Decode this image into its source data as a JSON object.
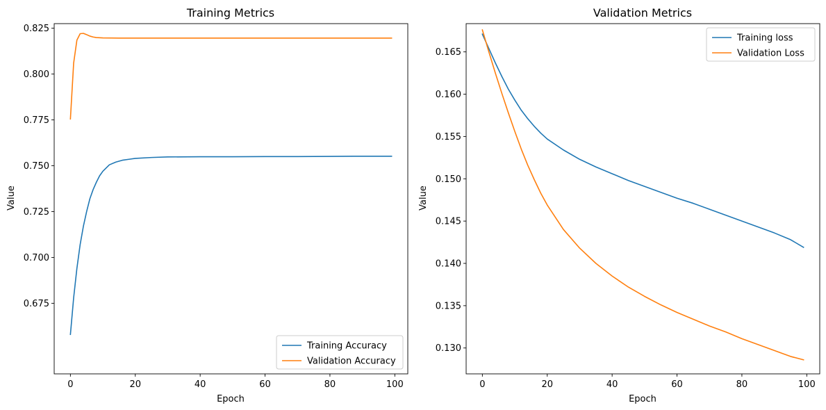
{
  "chart_data": [
    {
      "type": "line",
      "title": "Training Metrics",
      "xlabel": "Epoch",
      "ylabel": "Value",
      "xlim": [
        -5,
        104
      ],
      "ylim": [
        0.6365,
        0.8275
      ],
      "xticks": [
        0,
        20,
        40,
        60,
        80,
        100
      ],
      "yticks": [
        0.675,
        0.7,
        0.725,
        0.75,
        0.775,
        0.8,
        0.825
      ],
      "ytick_labels": [
        "0.675",
        "0.700",
        "0.725",
        "0.750",
        "0.775",
        "0.800",
        "0.825"
      ],
      "legend_loc": "lower right",
      "grid": false,
      "series": [
        {
          "name": "Training Accuracy",
          "color": "#1f77b4",
          "points": [
            [
              0,
              0.658
            ],
            [
              1,
              0.678
            ],
            [
              2,
              0.694
            ],
            [
              3,
              0.707
            ],
            [
              4,
              0.717
            ],
            [
              5,
              0.725
            ],
            [
              6,
              0.732
            ],
            [
              7,
              0.737
            ],
            [
              8,
              0.741
            ],
            [
              9,
              0.7445
            ],
            [
              10,
              0.747
            ],
            [
              12,
              0.7505
            ],
            [
              14,
              0.752
            ],
            [
              16,
              0.753
            ],
            [
              18,
              0.7535
            ],
            [
              20,
              0.754
            ],
            [
              25,
              0.7545
            ],
            [
              30,
              0.7548
            ],
            [
              40,
              0.7549
            ],
            [
              50,
              0.7549
            ],
            [
              60,
              0.755
            ],
            [
              70,
              0.755
            ],
            [
              80,
              0.7551
            ],
            [
              90,
              0.7552
            ],
            [
              99,
              0.7552
            ]
          ]
        },
        {
          "name": "Validation Accuracy",
          "color": "#ff7f0e",
          "points": [
            [
              0,
              0.7755
            ],
            [
              1,
              0.806
            ],
            [
              2,
              0.8185
            ],
            [
              3,
              0.822
            ],
            [
              4,
              0.8222
            ],
            [
              5,
              0.8215
            ],
            [
              6,
              0.8207
            ],
            [
              7,
              0.8202
            ],
            [
              8,
              0.8199
            ],
            [
              10,
              0.8197
            ],
            [
              15,
              0.8196
            ],
            [
              20,
              0.8196
            ],
            [
              40,
              0.8196
            ],
            [
              60,
              0.8196
            ],
            [
              80,
              0.8196
            ],
            [
              99,
              0.8196
            ]
          ]
        }
      ]
    },
    {
      "type": "line",
      "title": "Validation Metrics",
      "xlabel": "Epoch",
      "ylabel": "Value",
      "xlim": [
        -5,
        104
      ],
      "ylim": [
        0.12694,
        0.16834
      ],
      "xticks": [
        0,
        20,
        40,
        60,
        80,
        100
      ],
      "yticks": [
        0.13,
        0.135,
        0.14,
        0.145,
        0.15,
        0.155,
        0.16,
        0.165
      ],
      "ytick_labels": [
        "0.130",
        "0.135",
        "0.140",
        "0.145",
        "0.150",
        "0.155",
        "0.160",
        "0.165"
      ],
      "legend_loc": "upper right",
      "grid": false,
      "series": [
        {
          "name": "Training loss",
          "color": "#1f77b4",
          "points": [
            [
              0,
              0.1671
            ],
            [
              2,
              0.1654
            ],
            [
              4,
              0.1637
            ],
            [
              6,
              0.1621
            ],
            [
              8,
              0.1606
            ],
            [
              10,
              0.1593
            ],
            [
              12,
              0.1581
            ],
            [
              14,
              0.1571
            ],
            [
              16,
              0.1562
            ],
            [
              18,
              0.1554
            ],
            [
              20,
              0.1547
            ],
            [
              25,
              0.1534
            ],
            [
              30,
              0.1523
            ],
            [
              35,
              0.1514
            ],
            [
              40,
              0.1506
            ],
            [
              45,
              0.1498
            ],
            [
              50,
              0.1491
            ],
            [
              55,
              0.1484
            ],
            [
              60,
              0.1477
            ],
            [
              65,
              0.1471
            ],
            [
              70,
              0.1464
            ],
            [
              75,
              0.1457
            ],
            [
              80,
              0.145
            ],
            [
              85,
              0.1443
            ],
            [
              90,
              0.1436
            ],
            [
              95,
              0.1428
            ],
            [
              99,
              0.1419
            ]
          ]
        },
        {
          "name": "Validation Loss",
          "color": "#ff7f0e",
          "points": [
            [
              0,
              0.1676
            ],
            [
              2,
              0.165
            ],
            [
              4,
              0.1625
            ],
            [
              6,
              0.1601
            ],
            [
              8,
              0.1578
            ],
            [
              10,
              0.1556
            ],
            [
              12,
              0.1535
            ],
            [
              14,
              0.1516
            ],
            [
              16,
              0.1499
            ],
            [
              18,
              0.1483
            ],
            [
              20,
              0.1469
            ],
            [
              25,
              0.144
            ],
            [
              30,
              0.1418
            ],
            [
              35,
              0.14
            ],
            [
              40,
              0.1385
            ],
            [
              45,
              0.1372
            ],
            [
              50,
              0.1361
            ],
            [
              55,
              0.1351
            ],
            [
              60,
              0.1342
            ],
            [
              65,
              0.1334
            ],
            [
              70,
              0.1326
            ],
            [
              75,
              0.1319
            ],
            [
              80,
              0.1311
            ],
            [
              85,
              0.1304
            ],
            [
              90,
              0.1297
            ],
            [
              95,
              0.129
            ],
            [
              99,
              0.1286
            ]
          ]
        }
      ]
    }
  ]
}
